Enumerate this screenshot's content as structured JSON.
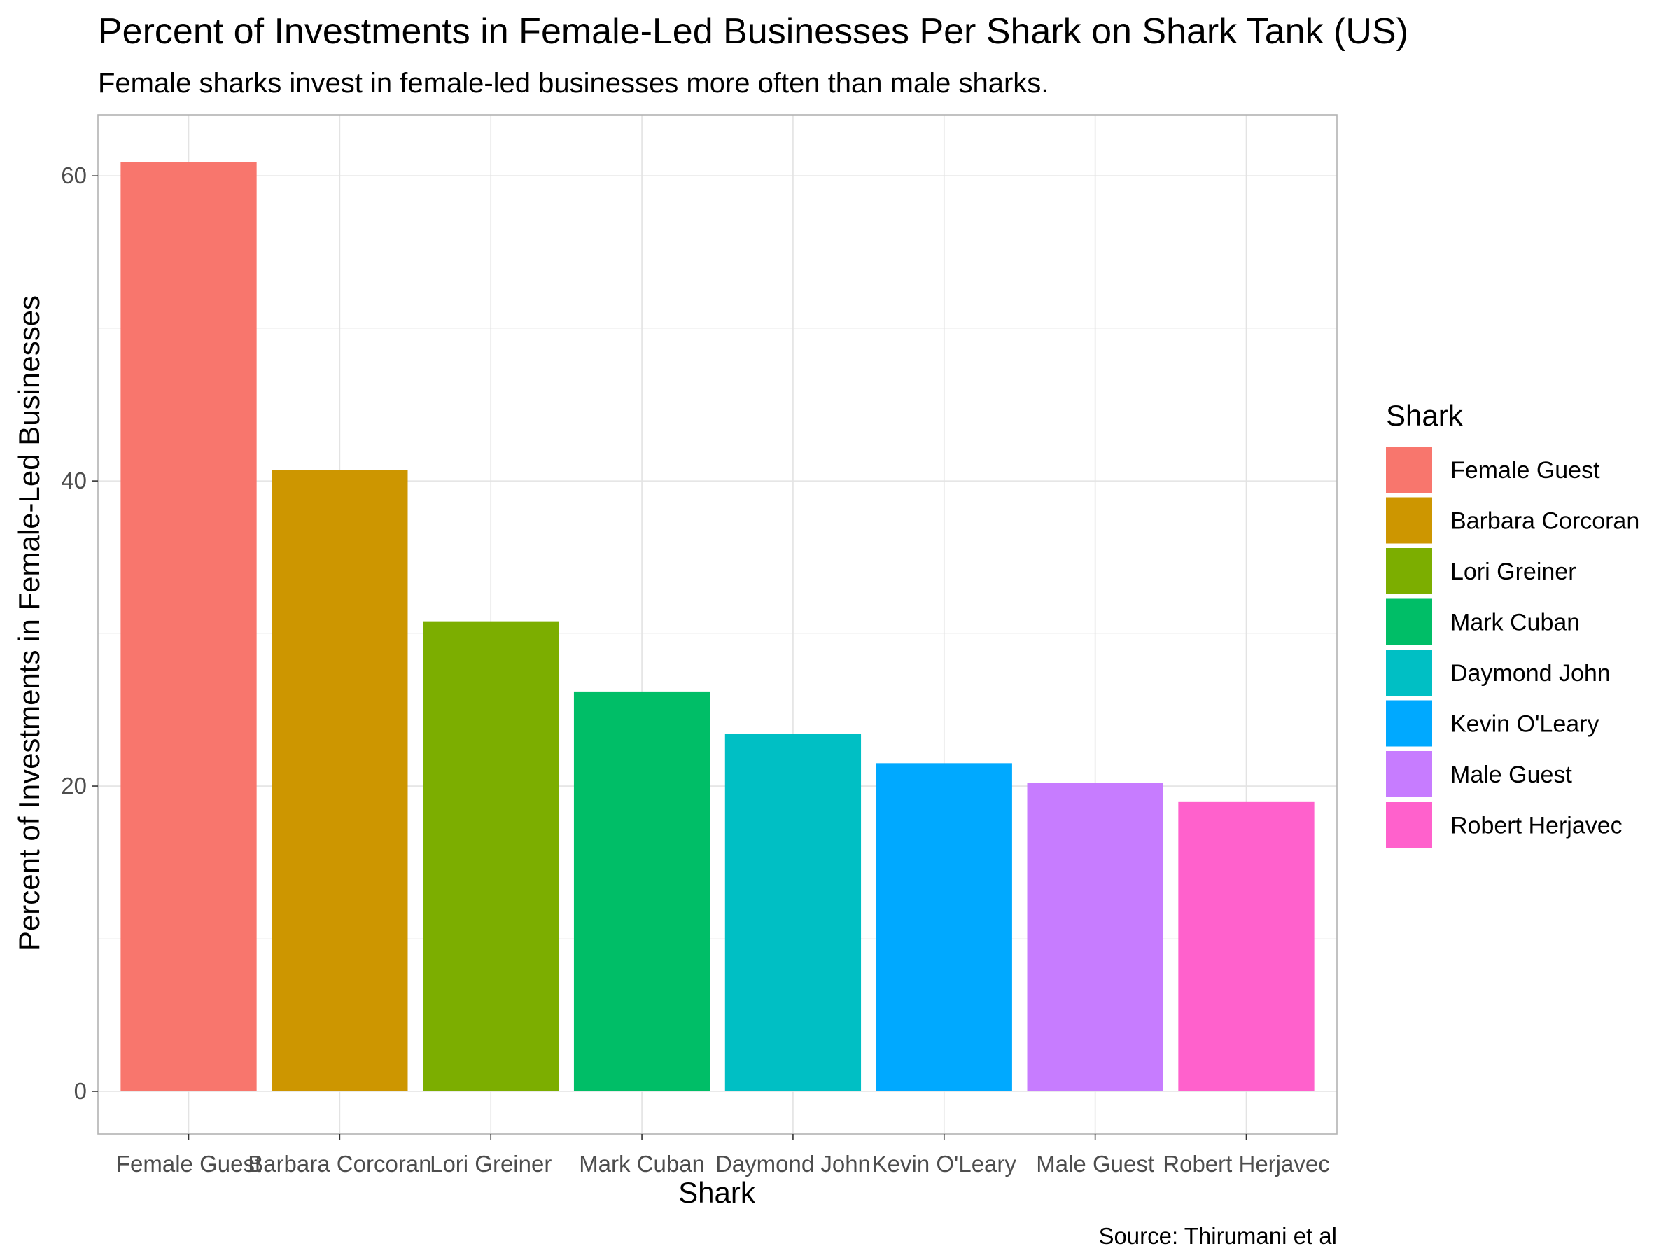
{
  "chart_data": {
    "type": "bar",
    "title": "Percent of Investments in Female-Led Businesses Per Shark on Shark Tank (US)",
    "subtitle": "Female sharks invest in female-led businesses more often than male sharks.",
    "xlabel": "Shark",
    "ylabel": "Percent of Investments in Female-Led Businesses",
    "caption": "Source: Thirumani et al",
    "categories": [
      "Female Guest",
      "Barbara Corcoran",
      "Lori Greiner",
      "Mark Cuban",
      "Daymond John",
      "Kevin O'Leary",
      "Male Guest",
      "Robert Herjavec"
    ],
    "values": [
      60.9,
      40.7,
      30.8,
      26.2,
      23.4,
      21.5,
      20.2,
      19.0
    ],
    "colors": [
      "#F8766D",
      "#CD9600",
      "#7CAE00",
      "#00BE67",
      "#00BFC4",
      "#00A9FF",
      "#C77CFF",
      "#FF61CC"
    ],
    "ylim": [
      -2.8,
      64
    ],
    "yticks": [
      0,
      20,
      40,
      60
    ],
    "grid": true,
    "legend": {
      "title": "Shark",
      "placement": "right",
      "entries": [
        "Female Guest",
        "Barbara Corcoran",
        "Lori Greiner",
        "Mark Cuban",
        "Daymond John",
        "Kevin O'Leary",
        "Male Guest",
        "Robert Herjavec"
      ]
    }
  }
}
